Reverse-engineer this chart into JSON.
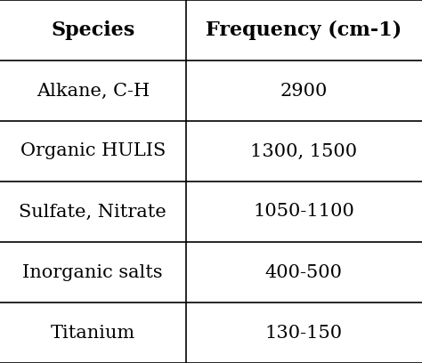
{
  "headers": [
    "Species",
    "Frequency (cm-1)"
  ],
  "rows": [
    [
      "Alkane, C-H",
      "2900"
    ],
    [
      "Organic HULIS",
      "1300, 1500"
    ],
    [
      "Sulfate, Nitrate",
      "1050-1100"
    ],
    [
      "Inorganic salts",
      "400-500"
    ],
    [
      "Titanium",
      "130-150"
    ]
  ],
  "bg_color": "#ffffff",
  "line_color": "#000000",
  "text_color": "#000000",
  "header_fontsize": 16,
  "cell_fontsize": 15,
  "col_split": 0.44,
  "fig_width": 4.74,
  "fig_height": 4.08,
  "dpi": 100
}
